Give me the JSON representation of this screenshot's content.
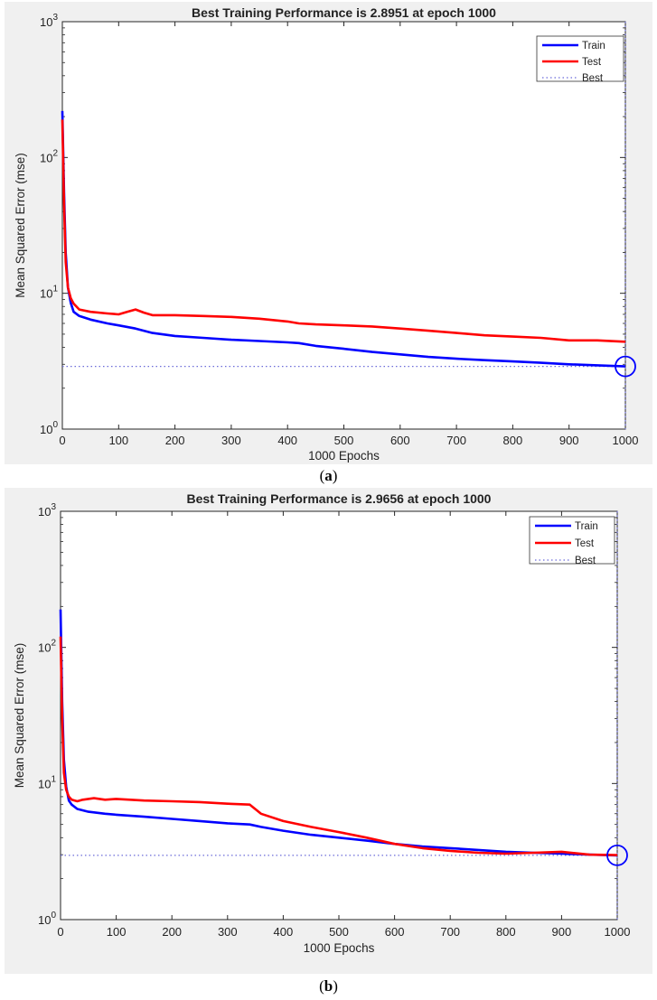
{
  "chart_data": [
    {
      "id": "a",
      "type": "line",
      "title": "Best Training Performance is 2.8951 at epoch 1000",
      "xlabel": "1000 Epochs",
      "ylabel": "Mean Squared Error  (mse)",
      "yscale": "log",
      "xlim": [
        0,
        1000
      ],
      "ylim": [
        1,
        1000
      ],
      "x_ticks": [
        "0",
        "100",
        "200",
        "300",
        "400",
        "500",
        "600",
        "700",
        "800",
        "900",
        "1000"
      ],
      "y_ticks": [
        {
          "base": "10",
          "exp": "0"
        },
        {
          "base": "10",
          "exp": "1"
        },
        {
          "base": "10",
          "exp": "2"
        },
        {
          "base": "10",
          "exp": "3"
        }
      ],
      "legend": {
        "placement": "top-right",
        "entries": [
          "Train",
          "Test",
          "Best"
        ]
      },
      "colors": {
        "train": "#0000ff",
        "test": "#ff0000",
        "best": "#6b6bd9"
      },
      "best": {
        "epoch": 1000,
        "value": 2.8951
      },
      "series": [
        {
          "name": "Train",
          "x": [
            0,
            3,
            6,
            10,
            15,
            20,
            30,
            50,
            80,
            100,
            130,
            160,
            200,
            250,
            300,
            350,
            400,
            420,
            450,
            500,
            550,
            600,
            650,
            700,
            750,
            800,
            850,
            900,
            950,
            1000
          ],
          "values": [
            220,
            55,
            20,
            11,
            8.5,
            7.3,
            6.8,
            6.4,
            6.0,
            5.8,
            5.5,
            5.1,
            4.85,
            4.7,
            4.55,
            4.45,
            4.35,
            4.3,
            4.1,
            3.9,
            3.7,
            3.55,
            3.4,
            3.3,
            3.22,
            3.15,
            3.08,
            3.0,
            2.95,
            2.8951
          ]
        },
        {
          "name": "Test",
          "x": [
            0,
            3,
            6,
            10,
            15,
            20,
            30,
            50,
            80,
            100,
            115,
            130,
            145,
            160,
            200,
            250,
            300,
            350,
            400,
            420,
            450,
            500,
            550,
            600,
            650,
            700,
            750,
            800,
            850,
            900,
            950,
            1000
          ],
          "values": [
            190,
            45,
            17,
            11,
            9.2,
            8.4,
            7.6,
            7.3,
            7.1,
            7.0,
            7.3,
            7.6,
            7.2,
            6.9,
            6.9,
            6.8,
            6.7,
            6.5,
            6.2,
            6.0,
            5.9,
            5.8,
            5.7,
            5.5,
            5.3,
            5.1,
            4.9,
            4.8,
            4.7,
            4.5,
            4.5,
            4.4
          ]
        }
      ]
    },
    {
      "id": "b",
      "type": "line",
      "title": "Best Training Performance is 2.9656 at epoch 1000",
      "xlabel": "1000 Epochs",
      "ylabel": "Mean Squared Error  (mse)",
      "yscale": "log",
      "xlim": [
        0,
        1000
      ],
      "ylim": [
        1,
        1000
      ],
      "x_ticks": [
        "0",
        "100",
        "200",
        "300",
        "400",
        "500",
        "600",
        "700",
        "800",
        "900",
        "1000"
      ],
      "y_ticks": [
        {
          "base": "10",
          "exp": "0"
        },
        {
          "base": "10",
          "exp": "1"
        },
        {
          "base": "10",
          "exp": "2"
        },
        {
          "base": "10",
          "exp": "3"
        }
      ],
      "legend": {
        "placement": "top-right",
        "entries": [
          "Train",
          "Test",
          "Best"
        ]
      },
      "colors": {
        "train": "#0000ff",
        "test": "#ff0000",
        "best": "#6b6bd9"
      },
      "best": {
        "epoch": 1000,
        "value": 2.9656
      },
      "series": [
        {
          "name": "Train",
          "x": [
            0,
            3,
            6,
            10,
            15,
            20,
            30,
            50,
            80,
            100,
            150,
            200,
            250,
            300,
            340,
            360,
            400,
            450,
            500,
            550,
            600,
            650,
            700,
            750,
            800,
            850,
            900,
            950,
            1000
          ],
          "values": [
            190,
            40,
            15,
            9.5,
            7.5,
            7.0,
            6.5,
            6.2,
            6.0,
            5.9,
            5.7,
            5.5,
            5.3,
            5.1,
            5.0,
            4.8,
            4.5,
            4.2,
            4.0,
            3.8,
            3.6,
            3.45,
            3.35,
            3.25,
            3.15,
            3.1,
            3.05,
            3.0,
            2.9656
          ]
        },
        {
          "name": "Test",
          "x": [
            0,
            3,
            6,
            10,
            15,
            20,
            30,
            40,
            60,
            80,
            100,
            150,
            200,
            250,
            300,
            340,
            360,
            400,
            450,
            500,
            550,
            600,
            650,
            700,
            750,
            800,
            850,
            900,
            950,
            1000
          ],
          "values": [
            120,
            30,
            12,
            9.0,
            8.0,
            7.6,
            7.4,
            7.6,
            7.8,
            7.6,
            7.7,
            7.5,
            7.4,
            7.3,
            7.1,
            7.0,
            6.0,
            5.3,
            4.8,
            4.4,
            4.0,
            3.6,
            3.35,
            3.2,
            3.1,
            3.05,
            3.1,
            3.15,
            3.0,
            2.98
          ]
        }
      ]
    }
  ],
  "captions": [
    {
      "label": "a"
    },
    {
      "label": "b"
    }
  ]
}
